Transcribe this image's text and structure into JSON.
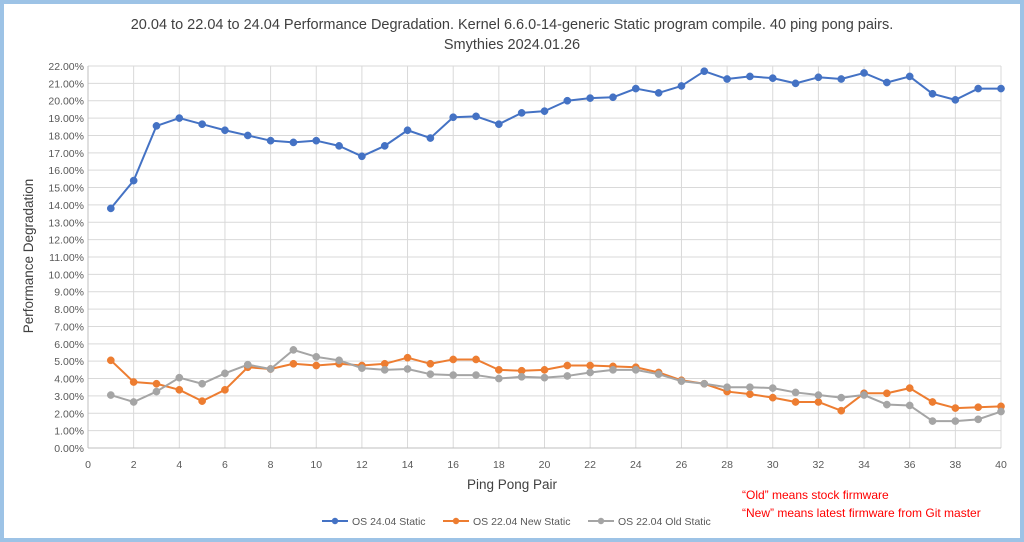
{
  "chart_data": {
    "type": "line",
    "title": "20.04 to 22.04 to 24.04 Performance Degradation. Kernel 6.6.0-14-generic Static program compile. 40 ping pong pairs.",
    "subtitle": "Smythies 2024.01.26",
    "xlabel": "Ping Pong Pair",
    "ylabel": "Performance Degradation",
    "xlim": [
      0,
      40
    ],
    "ylim": [
      0,
      22
    ],
    "x_ticks": [
      "0",
      "2",
      "4",
      "6",
      "8",
      "10",
      "12",
      "14",
      "16",
      "18",
      "20",
      "22",
      "24",
      "26",
      "28",
      "30",
      "32",
      "34",
      "36",
      "38",
      "40"
    ],
    "y_ticks": [
      "0.00%",
      "1.00%",
      "2.00%",
      "3.00%",
      "4.00%",
      "5.00%",
      "6.00%",
      "7.00%",
      "8.00%",
      "9.00%",
      "10.00%",
      "11.00%",
      "12.00%",
      "13.00%",
      "14.00%",
      "15.00%",
      "16.00%",
      "17.00%",
      "18.00%",
      "19.00%",
      "20.00%",
      "21.00%",
      "22.00%"
    ],
    "grid": true,
    "legend_position": "bottom",
    "x": [
      1,
      2,
      3,
      4,
      5,
      6,
      7,
      8,
      9,
      10,
      11,
      12,
      13,
      14,
      15,
      16,
      17,
      18,
      19,
      20,
      21,
      22,
      23,
      24,
      25,
      26,
      27,
      28,
      29,
      30,
      31,
      32,
      33,
      34,
      35,
      36,
      37,
      38,
      39,
      40
    ],
    "series": [
      {
        "name": "OS 24.04 Static",
        "color": "#4472c4",
        "values": [
          13.8,
          15.4,
          18.55,
          19.0,
          18.65,
          18.3,
          18.0,
          17.7,
          17.6,
          17.7,
          17.4,
          16.8,
          17.4,
          18.3,
          17.85,
          19.05,
          19.1,
          18.65,
          19.3,
          19.4,
          20.0,
          20.15,
          20.2,
          20.7,
          20.45,
          20.85,
          21.7,
          21.25,
          21.4,
          21.3,
          21.0,
          21.35,
          21.25,
          21.6,
          21.05,
          21.4,
          20.4,
          20.05,
          20.7,
          20.7
        ]
      },
      {
        "name": "OS 22.04 New Static",
        "color": "#ed7d31",
        "values": [
          5.05,
          3.8,
          3.7,
          3.35,
          2.7,
          3.35,
          4.65,
          4.55,
          4.85,
          4.75,
          4.85,
          4.75,
          4.85,
          5.2,
          4.85,
          5.1,
          5.1,
          4.5,
          4.45,
          4.5,
          4.75,
          4.75,
          4.7,
          4.65,
          4.35,
          3.9,
          3.7,
          3.25,
          3.1,
          2.9,
          2.65,
          2.65,
          2.15,
          3.15,
          3.15,
          3.45,
          2.65,
          2.3,
          2.35,
          2.4
        ]
      },
      {
        "name": "OS 22.04 Old Static",
        "color": "#a5a5a5",
        "values": [
          3.05,
          2.65,
          3.25,
          4.05,
          3.7,
          4.3,
          4.8,
          4.55,
          5.65,
          5.25,
          5.05,
          4.6,
          4.5,
          4.55,
          4.25,
          4.2,
          4.2,
          4.0,
          4.1,
          4.05,
          4.15,
          4.35,
          4.5,
          4.5,
          4.25,
          3.85,
          3.7,
          3.5,
          3.5,
          3.45,
          3.2,
          3.05,
          2.9,
          3.05,
          2.5,
          2.45,
          1.55,
          1.55,
          1.65,
          2.1
        ]
      }
    ],
    "annotations": [
      "“Old” means stock firmware",
      "“New” means latest firmware from Git master"
    ]
  }
}
